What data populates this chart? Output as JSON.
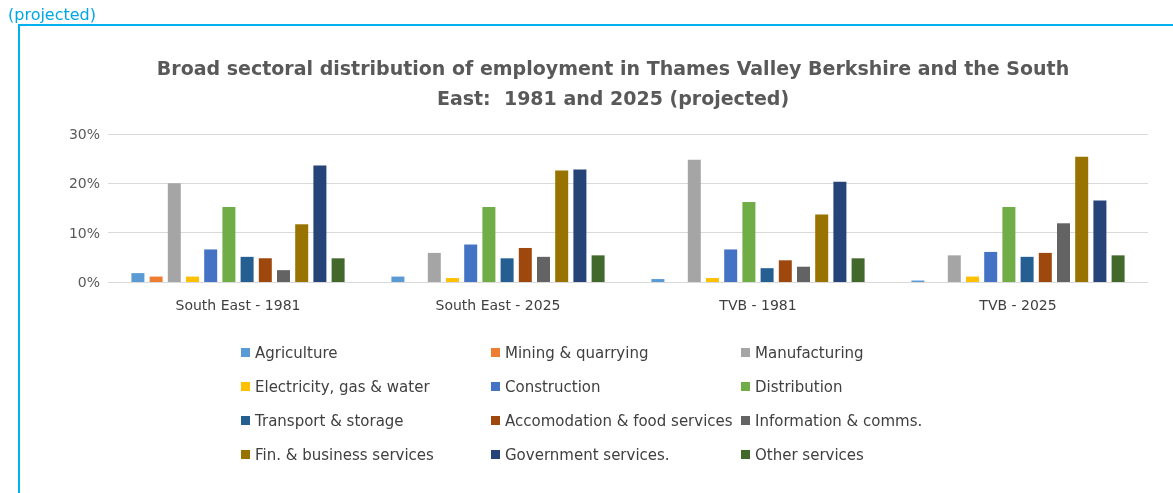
{
  "chart_data": {
    "type": "bar",
    "title": "Broad sectoral distribution of employment in Thames Valley Berkshire and the South\nEast:  1981 and 2025 (projected)",
    "annotations": [
      "(projected)"
    ],
    "categories": [
      "South East - 1981",
      "South East - 2025",
      "TVB - 1981",
      "TVB - 2025"
    ],
    "series": [
      {
        "name": "Agriculture",
        "color": "#5b9bd5",
        "values": [
          1.8,
          1.1,
          0.6,
          0.3
        ]
      },
      {
        "name": "Mining & quarrying",
        "color": "#ed7d31",
        "values": [
          1.1,
          0,
          0,
          0
        ]
      },
      {
        "name": "Manufacturing",
        "color": "#a5a5a5",
        "values": [
          20.0,
          5.9,
          24.8,
          5.4
        ]
      },
      {
        "name": "Electricity, gas & water",
        "color": "#ffc000",
        "values": [
          1.1,
          0.8,
          0.8,
          1.1
        ]
      },
      {
        "name": "Construction",
        "color": "#4472c4",
        "values": [
          6.6,
          7.6,
          6.6,
          6.1
        ]
      },
      {
        "name": "Distribution",
        "color": "#70ad47",
        "values": [
          15.2,
          15.2,
          16.2,
          15.2
        ]
      },
      {
        "name": "Transport & storage",
        "color": "#255e91",
        "values": [
          5.1,
          4.8,
          2.8,
          5.1
        ]
      },
      {
        "name": "Accomodation & food services",
        "color": "#9e480e",
        "values": [
          4.8,
          6.9,
          4.4,
          5.9
        ]
      },
      {
        "name": "Information & comms.",
        "color": "#636363",
        "values": [
          2.4,
          5.1,
          3.1,
          11.9
        ]
      },
      {
        "name": "Fin. & business services",
        "color": "#997300",
        "values": [
          11.7,
          22.6,
          13.7,
          25.4
        ]
      },
      {
        "name": "Government services.",
        "color": "#264478",
        "values": [
          23.6,
          22.8,
          20.3,
          16.5
        ]
      },
      {
        "name": "Other services",
        "color": "#43682b",
        "values": [
          4.8,
          5.4,
          4.8,
          5.4
        ]
      }
    ],
    "ylim": [
      0,
      30
    ],
    "yticks": [
      {
        "value": 0,
        "label": "0%"
      },
      {
        "value": 10,
        "label": "10%"
      },
      {
        "value": 20,
        "label": "20%"
      },
      {
        "value": 30,
        "label": "30%"
      }
    ],
    "grid": "y",
    "legend": "bottom"
  }
}
